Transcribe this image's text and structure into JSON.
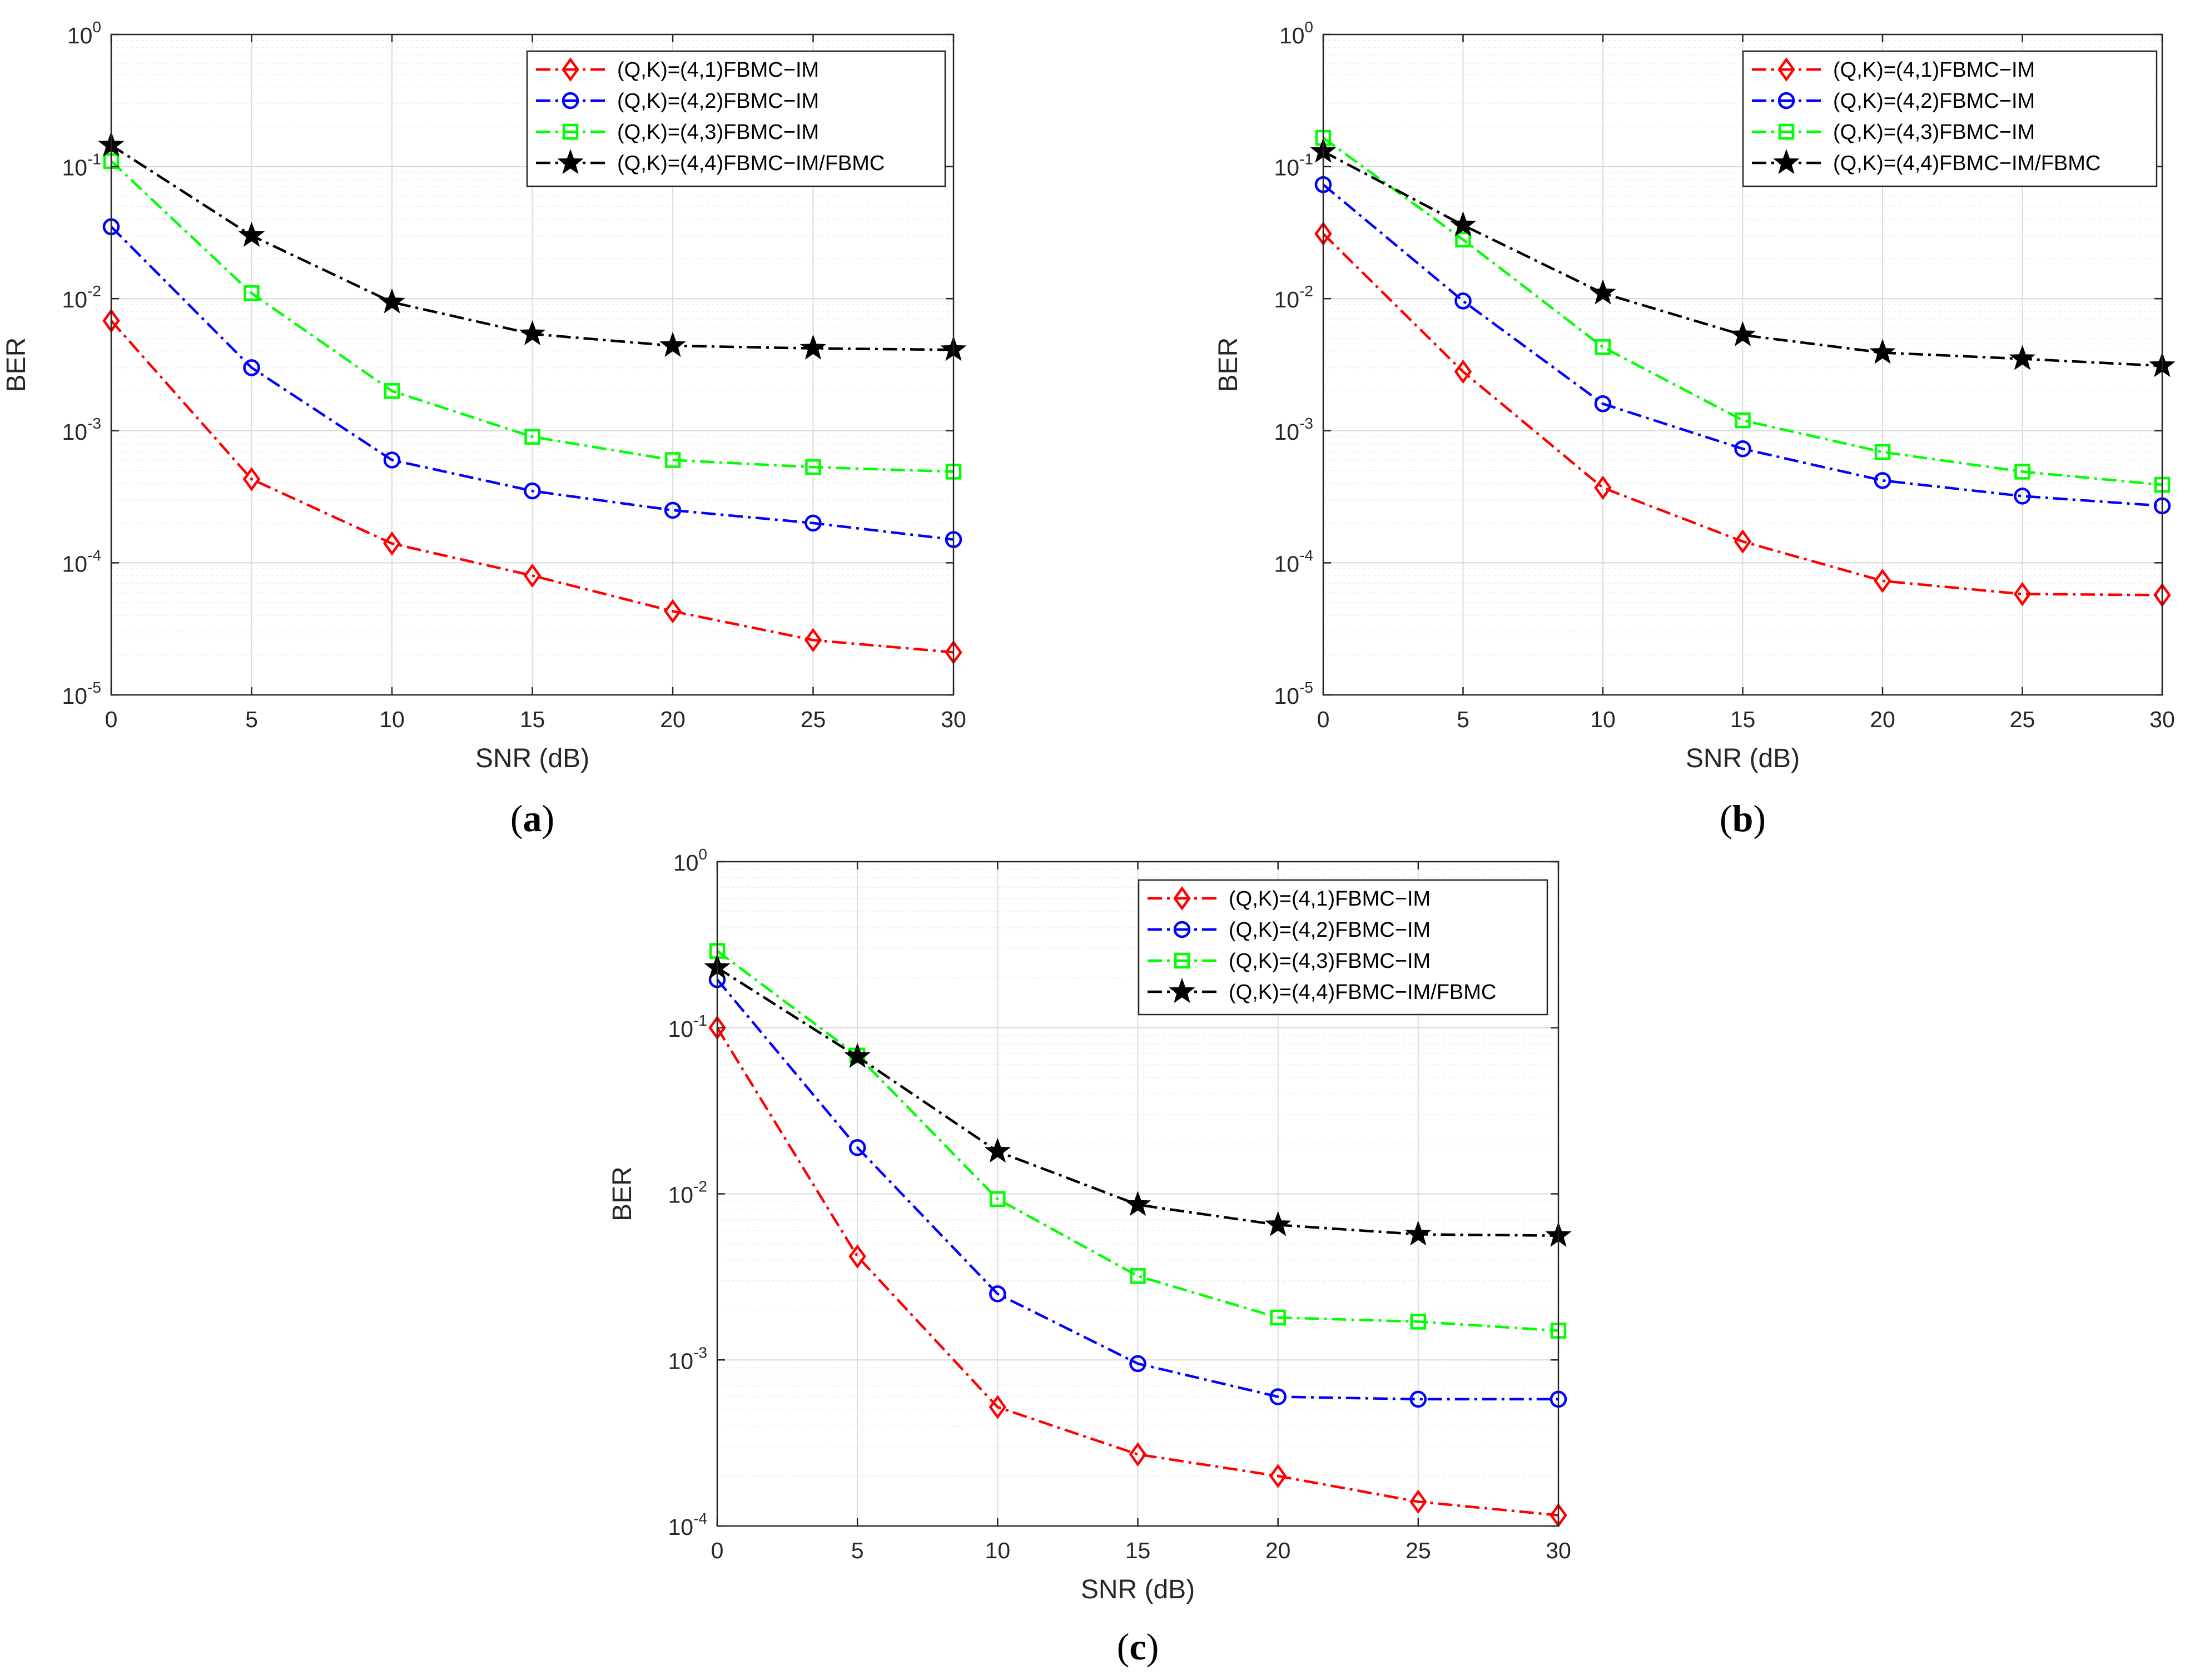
{
  "chart_data": [
    {
      "type": "line",
      "panel": "a",
      "caption_open": "(",
      "caption_letter": "a",
      "caption_close": ")",
      "xlabel": "SNR (dB)",
      "ylabel": "BER",
      "yscale": "log",
      "xlim": [
        0,
        30
      ],
      "ylim_exp": [
        -5,
        0
      ],
      "xticks": [
        0,
        5,
        10,
        15,
        20,
        25,
        30
      ],
      "grid": true,
      "legend_position": "top-right",
      "x": [
        0,
        5,
        10,
        15,
        20,
        25,
        30
      ],
      "series": [
        {
          "name": "(Q,K)=(4,1)FBMC−IM",
          "color": "#ff0000",
          "marker": "diamond",
          "values": [
            0.0068,
            0.00043,
            0.00014,
            8e-05,
            4.3e-05,
            2.6e-05,
            2.1e-05
          ]
        },
        {
          "name": "(Q,K)=(4,2)FBMC−IM",
          "color": "#0000ff",
          "marker": "circle",
          "values": [
            0.035,
            0.003,
            0.0006,
            0.00035,
            0.00025,
            0.0002,
            0.00015
          ]
        },
        {
          "name": "(Q,K)=(4,3)FBMC−IM",
          "color": "#00ff00",
          "marker": "square",
          "values": [
            0.11,
            0.011,
            0.002,
            0.0009,
            0.0006,
            0.00053,
            0.00049
          ]
        },
        {
          "name": "(Q,K)=(4,4)FBMC−IM/FBMC",
          "color": "#000000",
          "marker": "star",
          "values": [
            0.145,
            0.03,
            0.0094,
            0.0054,
            0.0044,
            0.0042,
            0.0041
          ]
        }
      ]
    },
    {
      "type": "line",
      "panel": "b",
      "caption_open": "(",
      "caption_letter": "b",
      "caption_close": ")",
      "xlabel": "SNR (dB)",
      "ylabel": "BER",
      "yscale": "log",
      "xlim": [
        0,
        30
      ],
      "ylim_exp": [
        -5,
        0
      ],
      "xticks": [
        0,
        5,
        10,
        15,
        20,
        25,
        30
      ],
      "grid": true,
      "legend_position": "top-right",
      "x": [
        0,
        5,
        10,
        15,
        20,
        25,
        30
      ],
      "series": [
        {
          "name": "(Q,K)=(4,1)FBMC−IM",
          "color": "#ff0000",
          "marker": "diamond",
          "values": [
            0.031,
            0.0028,
            0.00037,
            0.000145,
            7.3e-05,
            5.8e-05,
            5.7e-05
          ]
        },
        {
          "name": "(Q,K)=(4,2)FBMC−IM",
          "color": "#0000ff",
          "marker": "circle",
          "values": [
            0.073,
            0.0096,
            0.0016,
            0.00073,
            0.00042,
            0.00032,
            0.00027
          ]
        },
        {
          "name": "(Q,K)=(4,3)FBMC−IM",
          "color": "#00ff00",
          "marker": "square",
          "values": [
            0.165,
            0.028,
            0.0043,
            0.0012,
            0.00069,
            0.00049,
            0.00039
          ]
        },
        {
          "name": "(Q,K)=(4,4)FBMC−IM/FBMC",
          "color": "#000000",
          "marker": "star",
          "values": [
            0.13,
            0.036,
            0.011,
            0.0053,
            0.0039,
            0.0035,
            0.0031
          ]
        }
      ]
    },
    {
      "type": "line",
      "panel": "c",
      "caption_open": "(",
      "caption_letter": "c",
      "caption_close": ")",
      "xlabel": "SNR (dB)",
      "ylabel": "BER",
      "yscale": "log",
      "xlim": [
        0,
        30
      ],
      "ylim_exp": [
        -4,
        0
      ],
      "xticks": [
        0,
        5,
        10,
        15,
        20,
        25,
        30
      ],
      "grid": true,
      "legend_position": "top-right",
      "x": [
        0,
        5,
        10,
        15,
        20,
        25,
        30
      ],
      "series": [
        {
          "name": "(Q,K)=(4,1)FBMC−IM",
          "color": "#ff0000",
          "marker": "diamond",
          "values": [
            0.1,
            0.0042,
            0.00052,
            0.00027,
            0.0002,
            0.00014,
            0.000116
          ]
        },
        {
          "name": "(Q,K)=(4,2)FBMC−IM",
          "color": "#0000ff",
          "marker": "circle",
          "values": [
            0.195,
            0.019,
            0.0025,
            0.00095,
            0.0006,
            0.00058,
            0.00058
          ]
        },
        {
          "name": "(Q,K)=(4,3)FBMC−IM",
          "color": "#00ff00",
          "marker": "square",
          "values": [
            0.29,
            0.068,
            0.0093,
            0.0032,
            0.0018,
            0.0017,
            0.0015
          ]
        },
        {
          "name": "(Q,K)=(4,4)FBMC−IM/FBMC",
          "color": "#000000",
          "marker": "star",
          "values": [
            0.23,
            0.067,
            0.018,
            0.0086,
            0.0065,
            0.0057,
            0.0056
          ]
        }
      ]
    }
  ]
}
